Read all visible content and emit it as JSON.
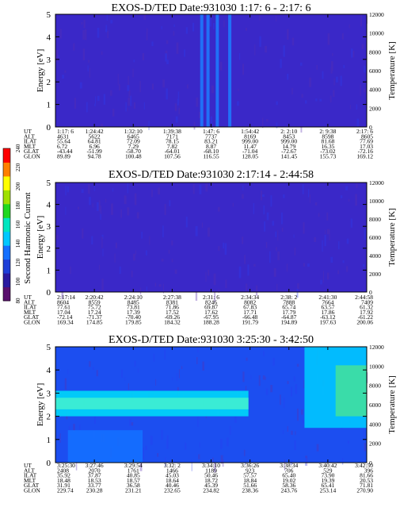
{
  "chart_data": {
    "type": "heatmap",
    "colorbar": {
      "label": "Second Harmonic Current",
      "ticks": [
        "80",
        "100",
        "120",
        "140",
        "160",
        "180",
        "200",
        "220",
        "240"
      ],
      "colors": [
        "#5a0f6e",
        "#2a1aa0",
        "#1e3fd8",
        "#1470ff",
        "#00c8ff",
        "#00e6c0",
        "#20d820",
        "#a0e000",
        "#ffff00",
        "#ff8000",
        "#ff0000"
      ]
    },
    "panels": [
      {
        "title": "EXOS-D/TED   Date:931030  1:17: 6 - 2:17: 6",
        "ylabel": "Energy [eV]",
        "y2label": "Temperature [K]",
        "ylim": [
          0,
          5
        ],
        "y2lim": [
          0,
          12000
        ],
        "yticks": [
          "0",
          "1",
          "2",
          "3",
          "4",
          "5"
        ],
        "y2ticks": [
          "0",
          "2000",
          "4000",
          "6000",
          "8000",
          "10000",
          "12000"
        ],
        "background": "#3a28c8",
        "bands": [],
        "spikes": [
          0.47,
          0.49,
          0.52,
          0.56
        ],
        "ephemeris": {
          "row_labels": [
            "UT",
            "ALT",
            "ILAT",
            "MLT",
            "GLAT",
            "GLON"
          ],
          "columns": [
            [
              "1:17: 6",
              "4631",
              "55.64",
              "6.72",
              "-43.44",
              "89.89"
            ],
            [
              "1:24:42",
              "5622",
              "64.81",
              "6.96",
              "-51.99",
              "94.78"
            ],
            [
              "1:32:10",
              "6465",
              "72.09",
              "7.29",
              "-58.70",
              "100.48"
            ],
            [
              "1:39:38",
              "7171",
              "78.15",
              "7.82",
              "-64.01",
              "107.56"
            ],
            [
              "1:47: 6",
              "7737",
              "83.21",
              "8.87",
              "-68.10",
              "116.55"
            ],
            [
              "1:54:42",
              "8169",
              "999.00",
              "11.47",
              "-71.04",
              "128.05"
            ],
            [
              "2: 2:10",
              "8453",
              "999.00",
              "14.79",
              "-72.67",
              "141.45"
            ],
            [
              "2: 9:38",
              "8598",
              "81.68",
              "16.35",
              "-73.02",
              "155.73"
            ],
            [
              "2:17: 6",
              "8605",
              "77.69",
              "17.03",
              "-72.16",
              "169.12"
            ]
          ]
        }
      },
      {
        "title": "EXOS-D/TED   Date:931030  2:17:14 - 2:44:58",
        "ylabel": "Energy [eV]",
        "y2label": "Temperature [K]",
        "ylim": [
          0,
          5
        ],
        "y2lim": [
          0,
          12000
        ],
        "yticks": [
          "0",
          "1",
          "2",
          "3",
          "4",
          "5"
        ],
        "y2ticks": [
          "0",
          "2000",
          "4000",
          "6000",
          "8000",
          "10000",
          "12000"
        ],
        "background": "#3a28c8",
        "bands": [],
        "spikes": [],
        "ephemeris": {
          "row_labels": [
            "UT",
            "ALT",
            "ILAT",
            "MLT",
            "GLAT",
            "GLON"
          ],
          "columns": [
            [
              "2:17:14",
              "8604",
              "77.61",
              "17.04",
              "-72.14",
              "169.34"
            ],
            [
              "2:20:42",
              "8559",
              "75.72",
              "17.24",
              "-71.37",
              "174.85"
            ],
            [
              "2:24:10",
              "8485",
              "73.81",
              "17.39",
              "-70.40",
              "179.85"
            ],
            [
              "2:27:38",
              "8381",
              "71.86",
              "17.52",
              "-69.26",
              "184.32"
            ],
            [
              "2:31: 6",
              "8246",
              "69.87",
              "17.62",
              "-67.95",
              "188.28"
            ],
            [
              "2:34:34",
              "8082",
              "67.83",
              "17.71",
              "-66.48",
              "191.79"
            ],
            [
              "2:38: 2",
              "7888",
              "65.74",
              "17.79",
              "-64.87",
              "194.89"
            ],
            [
              "2:41:30",
              "7664",
              "63.57",
              "17.86",
              "-63.12",
              "197.63"
            ],
            [
              "2:44:58",
              "7409",
              "61.32",
              "17.92",
              "-61.22",
              "200.06"
            ]
          ]
        }
      },
      {
        "title": "EXOS-D/TED   Date:931030  3:25:30 - 3:42:50",
        "ylabel": "Energy [eV]",
        "y2label": "Temperature [K]",
        "ylim": [
          0,
          5
        ],
        "y2lim": [
          0,
          12000
        ],
        "yticks": [
          "0",
          "1",
          "2",
          "3",
          "4",
          "5"
        ],
        "y2ticks": [
          "0",
          "2000",
          "4000",
          "6000",
          "8000",
          "10000",
          "12000"
        ],
        "background": "#1c4ef0",
        "bands": [
          {
            "e_low": 2.0,
            "e_high": 3.1,
            "x_start": 0.0,
            "x_end": 0.62,
            "color": "#00d8f8"
          },
          {
            "e_low": 2.3,
            "e_high": 2.8,
            "x_start": 0.0,
            "x_end": 0.62,
            "color": "#40f0d0"
          },
          {
            "e_low": 0.0,
            "e_high": 1.4,
            "x_start": 0.04,
            "x_end": 0.28,
            "color": "#1470ff"
          },
          {
            "e_low": 1.5,
            "e_high": 5.0,
            "x_start": 0.8,
            "x_end": 1.0,
            "color": "#00c8ff"
          },
          {
            "e_low": 2.0,
            "e_high": 4.2,
            "x_start": 0.9,
            "x_end": 1.0,
            "color": "#40e0a0"
          }
        ],
        "spikes": [],
        "ephemeris": {
          "row_labels": [
            "UT",
            "ALT",
            "ILAT",
            "MLT",
            "GLAT",
            "GLON"
          ],
          "columns": [
            [
              "3:25:30",
              "2408",
              "35.92",
              "18.48",
              "31.91",
              "229.74"
            ],
            [
              "3:27:46",
              "2070",
              "37.87",
              "18.53",
              "33.77",
              "230.28"
            ],
            [
              "3:29:54",
              "1761",
              "40.85",
              "18.57",
              "36.58",
              "231.21"
            ],
            [
              "3:32: 2",
              "1466",
              "45.03",
              "18.64",
              "40.46",
              "232.65"
            ],
            [
              "3:34:10",
              "1189",
              "50.46",
              "18.72",
              "45.39",
              "234.82"
            ],
            [
              "3:36:26",
              "923",
              "57.57",
              "18.84",
              "51.66",
              "238.36"
            ],
            [
              "3:38:34",
              "706",
              "65.40",
              "19.02",
              "58.36",
              "243.76"
            ],
            [
              "3:40:42",
              "529",
              "73.90",
              "19.39",
              "65.41",
              "253.14"
            ],
            [
              "3:42:50",
              "396",
              "81.66",
              "20.53",
              "71.81",
              "270.90"
            ]
          ]
        }
      }
    ]
  }
}
